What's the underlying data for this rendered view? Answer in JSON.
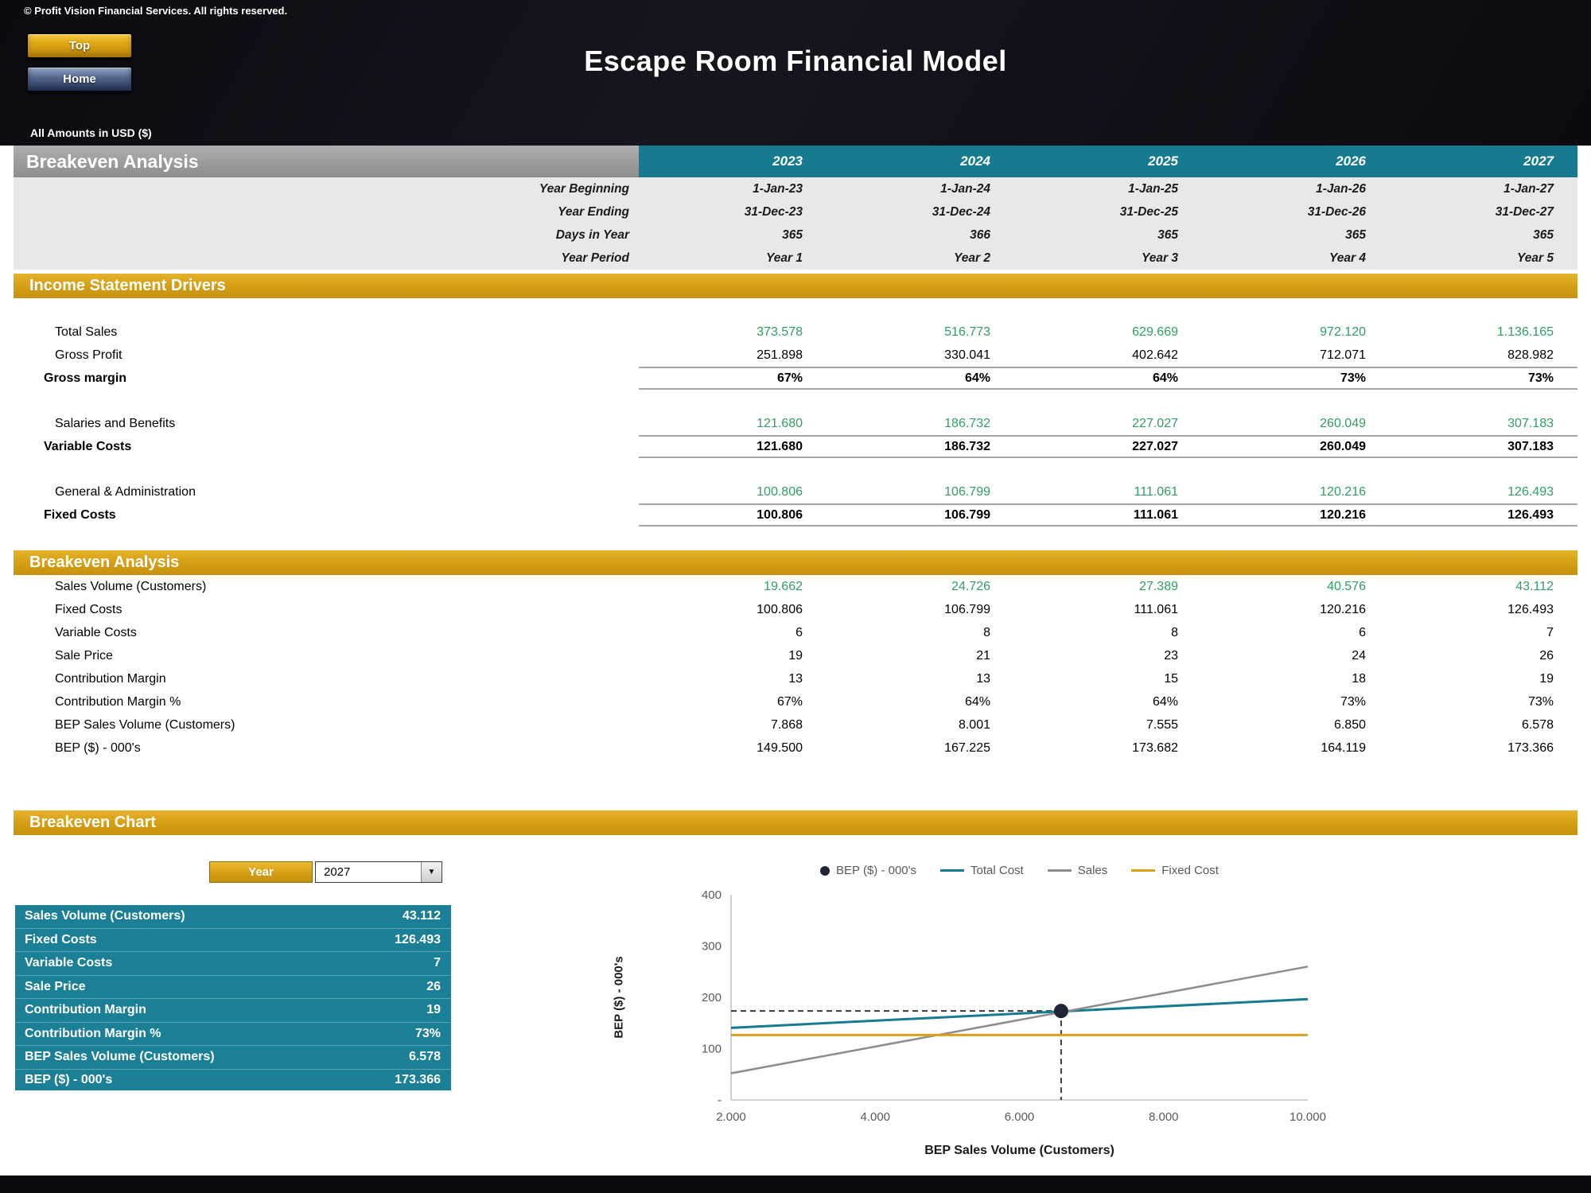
{
  "page": {
    "copyright": "© Profit Vision Financial Services. All rights reserved.",
    "title": "Escape Room Financial Model",
    "amounts_note": "All Amounts in  USD ($)"
  },
  "nav": {
    "top_button": "Top",
    "home_button": "Home"
  },
  "colors": {
    "teal": "#177B90",
    "gold": "#D39E13",
    "green": "#2F9E63",
    "dark": "#0A0A10"
  },
  "table": {
    "header_title": "Breakeven Analysis",
    "years": [
      "2023",
      "2024",
      "2025",
      "2026",
      "2027"
    ],
    "info_rows": [
      {
        "label": "Year Beginning",
        "values": [
          "1-Jan-23",
          "1-Jan-24",
          "1-Jan-25",
          "1-Jan-26",
          "1-Jan-27"
        ]
      },
      {
        "label": "Year Ending",
        "values": [
          "31-Dec-23",
          "31-Dec-24",
          "31-Dec-25",
          "31-Dec-26",
          "31-Dec-27"
        ]
      },
      {
        "label": "Days in Year",
        "values": [
          "365",
          "366",
          "365",
          "365",
          "365"
        ]
      },
      {
        "label": "Year Period",
        "values": [
          "Year 1",
          "Year 2",
          "Year 3",
          "Year 4",
          "Year 5"
        ]
      }
    ],
    "sections": [
      {
        "title": "Income Statement Drivers",
        "rows": [
          {
            "label": "Total Sales",
            "style": "input",
            "gap_before": true,
            "values": [
              "373.578",
              "516.773",
              "629.669",
              "972.120",
              "1.136.165"
            ]
          },
          {
            "label": "Gross Profit",
            "style": "plain",
            "values": [
              "251.898",
              "330.041",
              "402.642",
              "712.071",
              "828.982"
            ]
          },
          {
            "label": "Gross margin",
            "style": "total",
            "values": [
              "67%",
              "64%",
              "64%",
              "73%",
              "73%"
            ]
          },
          {
            "label": "Salaries and Benefits",
            "style": "input",
            "gap_before": true,
            "values": [
              "121.680",
              "186.732",
              "227.027",
              "260.049",
              "307.183"
            ]
          },
          {
            "label": "Variable Costs",
            "style": "total",
            "values": [
              "121.680",
              "186.732",
              "227.027",
              "260.049",
              "307.183"
            ]
          },
          {
            "label": "General & Administration",
            "style": "input",
            "gap_before": true,
            "values": [
              "100.806",
              "106.799",
              "111.061",
              "120.216",
              "126.493"
            ]
          },
          {
            "label": "Fixed Costs",
            "style": "total",
            "values": [
              "100.806",
              "106.799",
              "111.061",
              "120.216",
              "126.493"
            ]
          }
        ]
      },
      {
        "title": "Breakeven Analysis",
        "rows": [
          {
            "label": "Sales Volume (Customers)",
            "style": "input",
            "values": [
              "19.662",
              "24.726",
              "27.389",
              "40.576",
              "43.112"
            ]
          },
          {
            "label": "Fixed Costs",
            "style": "plain",
            "values": [
              "100.806",
              "106.799",
              "111.061",
              "120.216",
              "126.493"
            ]
          },
          {
            "label": "Variable Costs",
            "style": "plain",
            "values": [
              "6",
              "8",
              "8",
              "6",
              "7"
            ]
          },
          {
            "label": "Sale Price",
            "style": "plain",
            "values": [
              "19",
              "21",
              "23",
              "24",
              "26"
            ]
          },
          {
            "label": "Contribution Margin",
            "style": "plain",
            "values": [
              "13",
              "13",
              "15",
              "18",
              "19"
            ]
          },
          {
            "label": "Contribution Margin %",
            "style": "plain",
            "values": [
              "67%",
              "64%",
              "64%",
              "73%",
              "73%"
            ]
          },
          {
            "label": "BEP Sales Volume (Customers)",
            "style": "plain",
            "values": [
              "7.868",
              "8.001",
              "7.555",
              "6.850",
              "6.578"
            ]
          },
          {
            "label": "BEP ($) - 000's",
            "style": "plain",
            "values": [
              "149.500",
              "167.225",
              "173.682",
              "164.119",
              "173.366"
            ]
          }
        ]
      }
    ]
  },
  "chart_section": {
    "title": "Breakeven Chart",
    "year_selector": {
      "label": "Year",
      "value": "2027"
    },
    "summary": {
      "rows": [
        [
          "Sales Volume (Customers)",
          "43.112"
        ],
        [
          "Fixed Costs",
          "126.493"
        ],
        [
          "Variable Costs",
          "7"
        ],
        [
          "Sale Price",
          "26"
        ],
        [
          "Contribution Margin",
          "19"
        ],
        [
          "Contribution Margin %",
          "73%"
        ],
        [
          "BEP Sales Volume (Customers)",
          "6.578"
        ],
        [
          "BEP ($) - 000's",
          "173.366"
        ]
      ]
    }
  },
  "chart_data": {
    "type": "line",
    "title": "Breakeven Chart",
    "xlabel": "BEP Sales Volume (Customers)",
    "ylabel": "BEP ($) - 000's",
    "xlim": [
      2000,
      10000
    ],
    "ylim": [
      0,
      400
    ],
    "grid": false,
    "legend_position": "top",
    "x_ticks": [
      {
        "v": 2000,
        "label": "2.000"
      },
      {
        "v": 4000,
        "label": "4.000"
      },
      {
        "v": 6000,
        "label": "6.000"
      },
      {
        "v": 8000,
        "label": "8.000"
      },
      {
        "v": 10000,
        "label": "10.000"
      }
    ],
    "y_ticks": [
      {
        "v": 0,
        "label": "-"
      },
      {
        "v": 100,
        "label": "100"
      },
      {
        "v": 200,
        "label": "200"
      },
      {
        "v": 300,
        "label": "300"
      },
      {
        "v": 400,
        "label": "400"
      }
    ],
    "series": [
      {
        "name": "Total Cost",
        "color": "#177B90",
        "width": 3,
        "points": [
          [
            2000,
            140.5
          ],
          [
            10000,
            196.5
          ]
        ]
      },
      {
        "name": "Sales",
        "color": "#8C8C8C",
        "width": 2.5,
        "points": [
          [
            2000,
            52
          ],
          [
            10000,
            260
          ]
        ]
      },
      {
        "name": "Fixed Cost",
        "color": "#D8A01D",
        "width": 3,
        "points": [
          [
            2000,
            126.5
          ],
          [
            10000,
            126.5
          ]
        ]
      }
    ],
    "bep_point": {
      "name": "BEP ($) - 000's",
      "x": 6578,
      "y": 173.366,
      "color": "#1F2534"
    },
    "legend": [
      {
        "label": "BEP ($) - 000's",
        "marker": "dot",
        "color": "#1F2534"
      },
      {
        "label": "Total Cost",
        "marker": "line",
        "color": "#177B90"
      },
      {
        "label": "Sales",
        "marker": "line",
        "color": "#8C8C8C"
      },
      {
        "label": "Fixed Cost",
        "marker": "line",
        "color": "#D8A01D"
      }
    ]
  }
}
